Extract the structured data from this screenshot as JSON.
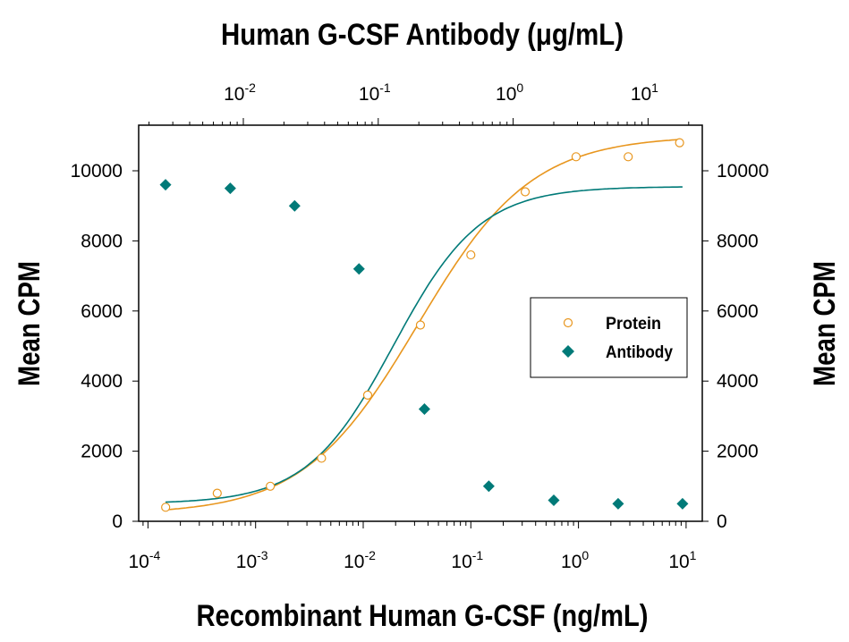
{
  "chart_data": {
    "type": "scatter",
    "title_top_axis": "Human G-CSF Antibody (μg/mL)",
    "xlabel": "Recombinant Human G-CSF (ng/mL)",
    "ylabel_left": "Mean CPM",
    "ylabel_right": "Mean CPM",
    "x_scale": "log",
    "x_bottom_lim": [
      0.0001,
      10
    ],
    "x_bottom_ticks": [
      "10",
      "10",
      "10",
      "10",
      "10",
      "10"
    ],
    "x_bottom_tick_exponents": [
      "-4",
      "-3",
      "-2",
      "-1",
      "0",
      "1"
    ],
    "x_top_ticks": [
      "10",
      "10",
      "10",
      "10"
    ],
    "x_top_tick_exponents": [
      "-2",
      "-1",
      "0",
      "1"
    ],
    "ylim": [
      0,
      11300
    ],
    "y_ticks": [
      "0",
      "2000",
      "4000",
      "6000",
      "8000",
      "10000"
    ],
    "grid": false,
    "legend_position": "center-right",
    "series": [
      {
        "name": "Protein",
        "axis": "bottom",
        "marker": "open-circle",
        "color": "#E8961E",
        "x": [
          0.000146,
          0.00044,
          0.00137,
          0.0041,
          0.011,
          0.034,
          0.1,
          0.32,
          0.95,
          2.9,
          8.7
        ],
        "y": [
          400,
          800,
          1000,
          1800,
          3600,
          5600,
          7600,
          9400,
          10400,
          10400,
          10800
        ]
      },
      {
        "name": "Antibody",
        "axis": "top",
        "marker": "filled-diamond",
        "color": "#007A78",
        "x": [
          0.00265,
          0.008,
          0.024,
          0.072,
          0.22,
          0.66,
          2,
          6,
          18
        ],
        "y": [
          9600,
          9500,
          9000,
          7200,
          3200,
          1000,
          600,
          500,
          500
        ]
      }
    ]
  }
}
